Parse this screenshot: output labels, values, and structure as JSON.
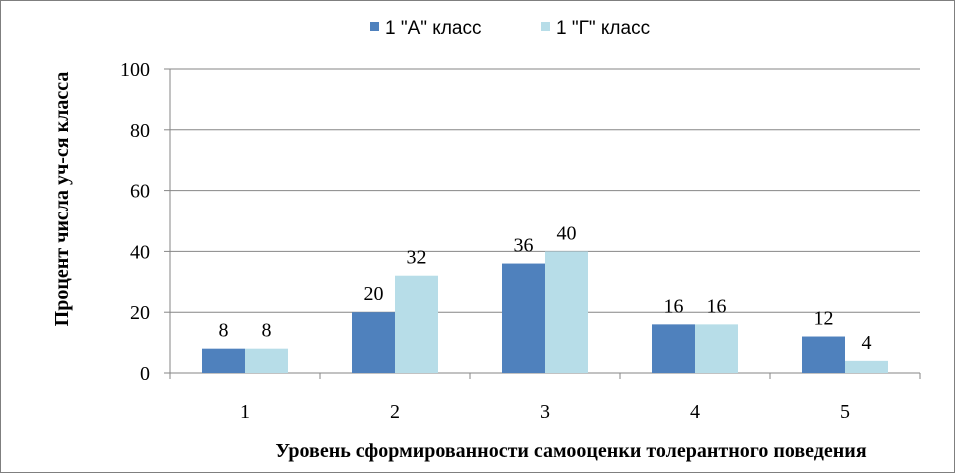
{
  "chart_data": {
    "type": "bar",
    "categories": [
      "1",
      "2",
      "3",
      "4",
      "5"
    ],
    "series": [
      {
        "name": "1 \"А\" класс",
        "values": [
          8,
          20,
          36,
          16,
          12
        ],
        "color": "#4f81bd"
      },
      {
        "name": "1 \"Г\" класс",
        "values": [
          8,
          32,
          40,
          16,
          4
        ],
        "color": "#b7dde8"
      }
    ],
    "title": "",
    "xlabel": "Уровень сформированности самооценки толерантного поведения",
    "ylabel": "Процент числа уч-ся класса",
    "ylim": [
      0,
      100
    ],
    "yticks": [
      "0",
      "20",
      "40",
      "60",
      "80",
      "100"
    ],
    "grid": true,
    "legend_position": "top",
    "data_labels": true
  }
}
